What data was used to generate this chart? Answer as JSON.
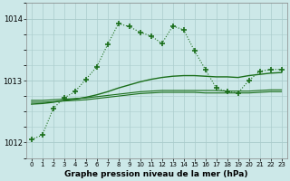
{
  "xlabel": "Graphe pression niveau de la mer (hPa)",
  "bg_color": "#cce8e8",
  "grid_color": "#aacccc",
  "line_color": "#1a6e1a",
  "xlim": [
    -0.5,
    23.5
  ],
  "ylim": [
    1011.75,
    1014.25
  ],
  "yticks": [
    1012,
    1013,
    1014
  ],
  "xticks": [
    0,
    1,
    2,
    3,
    4,
    5,
    6,
    7,
    8,
    9,
    10,
    11,
    12,
    13,
    14,
    15,
    16,
    17,
    18,
    19,
    20,
    21,
    22,
    23
  ],
  "line1_x": [
    0,
    1,
    2,
    3,
    4,
    5,
    6,
    7,
    8,
    9,
    10,
    11,
    12,
    13,
    14,
    15,
    16,
    17,
    18,
    19,
    20,
    21,
    22,
    23
  ],
  "line1_y": [
    1012.05,
    1012.12,
    1012.55,
    1012.72,
    1012.82,
    1013.02,
    1013.22,
    1013.58,
    1013.92,
    1013.87,
    1013.78,
    1013.72,
    1013.6,
    1013.88,
    1013.82,
    1013.48,
    1013.18,
    1012.88,
    1012.82,
    1012.8,
    1013.0,
    1013.15,
    1013.18,
    1013.18
  ],
  "line2_x": [
    0,
    1,
    2,
    3,
    4,
    5,
    6,
    7,
    8,
    9,
    10,
    11,
    12,
    13,
    14,
    15,
    16,
    17,
    18,
    19,
    20,
    21,
    22,
    23
  ],
  "line2_y": [
    1012.62,
    1012.63,
    1012.65,
    1012.68,
    1012.7,
    1012.73,
    1012.77,
    1012.82,
    1012.88,
    1012.93,
    1012.98,
    1013.02,
    1013.05,
    1013.07,
    1013.08,
    1013.08,
    1013.07,
    1013.06,
    1013.06,
    1013.05,
    1013.08,
    1013.1,
    1013.12,
    1013.13
  ],
  "line3_x": [
    0,
    1,
    2,
    3,
    4,
    5,
    6,
    7,
    8,
    9,
    10,
    11,
    12,
    13,
    14,
    15,
    16,
    17,
    18,
    19,
    20,
    21,
    22,
    23
  ],
  "line3_y": [
    1012.68,
    1012.68,
    1012.69,
    1012.7,
    1012.71,
    1012.72,
    1012.74,
    1012.76,
    1012.78,
    1012.8,
    1012.82,
    1012.83,
    1012.84,
    1012.84,
    1012.84,
    1012.84,
    1012.84,
    1012.84,
    1012.83,
    1012.83,
    1012.83,
    1012.84,
    1012.85,
    1012.85
  ],
  "line4_x": [
    0,
    1,
    2,
    3,
    4,
    5,
    6,
    7,
    8,
    9,
    10,
    11,
    12,
    13,
    14,
    15,
    16,
    17,
    18,
    19,
    20,
    21,
    22,
    23
  ],
  "line4_y": [
    1012.65,
    1012.65,
    1012.66,
    1012.67,
    1012.68,
    1012.69,
    1012.71,
    1012.73,
    1012.75,
    1012.77,
    1012.79,
    1012.8,
    1012.81,
    1012.81,
    1012.81,
    1012.81,
    1012.8,
    1012.8,
    1012.8,
    1012.8,
    1012.8,
    1012.81,
    1012.82,
    1012.82
  ]
}
